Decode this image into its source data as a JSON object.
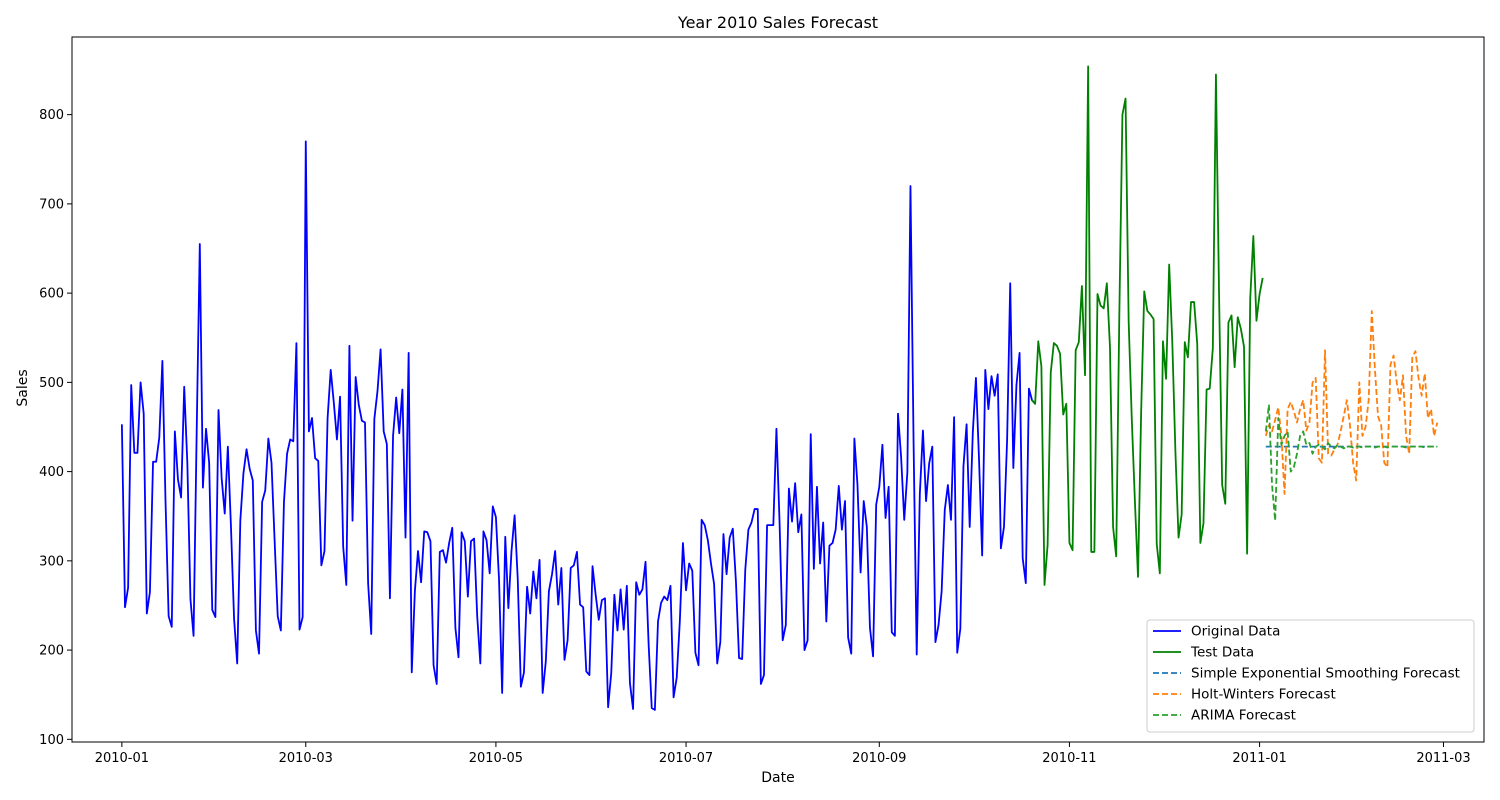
{
  "chart_data": {
    "type": "line",
    "title": "Year 2010 Sales Forecast",
    "xlabel": "Date",
    "ylabel": "Sales",
    "xlim": [
      "2009-12-16",
      "2011-03-14"
    ],
    "ylim": [
      97,
      887
    ],
    "x_ticks": [
      "2010-01",
      "2010-03",
      "2010-05",
      "2010-07",
      "2010-09",
      "2010-11",
      "2011-01",
      "2011-03"
    ],
    "y_ticks": [
      100,
      200,
      300,
      400,
      500,
      600,
      700,
      800
    ],
    "grid": false,
    "legend_position": "bottom-right",
    "series": [
      {
        "name": "Original Data",
        "color": "#0000ff",
        "style": "solid",
        "start": "2010-01-01",
        "step_days": 1,
        "values": [
          453,
          248,
          270,
          497,
          421,
          421,
          500,
          465,
          241,
          265,
          411,
          411,
          438,
          524,
          367,
          238,
          226,
          445,
          391,
          371,
          495,
          410,
          257,
          216,
          445,
          655,
          382,
          448,
          410,
          245,
          237,
          469,
          393,
          353,
          428,
          338,
          235,
          185,
          345,
          398,
          425,
          403,
          390,
          222,
          196,
          366,
          379,
          437,
          410,
          323,
          238,
          222,
          366,
          420,
          436,
          434,
          544,
          223,
          237,
          770,
          445,
          460,
          415,
          412,
          295,
          311,
          460,
          514,
          477,
          436,
          484,
          316,
          273,
          541,
          345,
          506,
          475,
          457,
          455,
          275,
          218,
          459,
          490,
          537,
          445,
          431,
          258,
          440,
          483,
          443,
          492,
          326,
          533,
          175,
          266,
          311,
          276,
          333,
          332,
          322,
          183,
          162,
          310,
          312,
          298,
          320,
          337,
          225,
          192,
          332,
          322,
          260,
          322,
          325,
          238,
          185,
          333,
          323,
          286,
          361,
          349,
          279,
          152,
          327,
          247,
          311,
          351,
          280,
          159,
          175,
          271,
          241,
          288,
          258,
          301,
          152,
          187,
          266,
          285,
          311,
          251,
          292,
          189,
          211,
          292,
          295,
          310,
          251,
          248,
          176,
          172,
          294,
          262,
          234,
          256,
          258,
          136,
          174,
          262,
          222,
          268,
          223,
          272,
          163,
          134,
          276,
          262,
          268,
          299,
          206,
          135,
          133,
          232,
          253,
          260,
          256,
          272,
          147,
          169,
          232,
          320,
          267,
          297,
          289,
          197,
          183,
          346,
          340,
          323,
          297,
          274,
          185,
          209,
          330,
          285,
          326,
          336,
          277,
          191,
          190,
          290,
          335,
          343,
          358,
          358,
          162,
          172,
          340,
          340,
          340,
          448,
          343,
          211,
          228,
          381,
          344,
          387,
          332,
          352,
          200,
          211,
          442,
          291,
          383,
          297,
          343,
          232,
          317,
          320,
          335,
          384,
          335,
          367,
          214,
          196,
          437,
          385,
          287,
          367,
          338,
          225,
          193,
          363,
          383,
          430,
          348,
          383,
          220,
          216,
          465,
          416,
          346,
          399,
          720,
          431,
          195,
          375,
          446,
          367,
          409,
          428,
          209,
          228,
          266,
          357,
          385,
          346,
          461,
          197,
          224,
          406,
          453,
          338,
          444,
          505,
          413,
          306,
          514,
          470,
          507,
          485,
          509,
          314,
          338,
          435,
          611,
          404,
          497,
          533,
          303,
          275,
          493,
          480,
          476
        ]
      },
      {
        "name": "Test Data",
        "color": "#008000",
        "style": "solid",
        "start": "2010-10-20",
        "step_days": 1,
        "values": [
          480,
          476,
          546,
          518,
          273,
          318,
          511,
          544,
          541,
          532,
          464,
          476,
          320,
          312,
          536,
          545,
          608,
          508,
          854,
          310,
          310,
          599,
          586,
          583,
          611,
          540,
          338,
          305,
          575,
          800,
          818,
          568,
          459,
          367,
          282,
          466,
          602,
          580,
          576,
          571,
          319,
          286,
          546,
          504,
          632,
          545,
          422,
          326,
          352,
          545,
          528,
          590,
          590,
          543,
          320,
          342,
          492,
          493,
          538,
          845,
          598,
          385,
          364,
          567,
          575,
          517,
          573,
          560,
          540,
          308,
          594,
          664,
          569,
          599,
          617
        ]
      },
      {
        "name": "Simple Exponential Smoothing Forecast",
        "color": "#1f77b4",
        "style": "dashed",
        "start": "2011-01-03",
        "step_days": 1,
        "values": [
          428,
          428,
          428,
          428,
          428,
          428,
          428,
          428,
          428,
          428,
          428,
          428,
          428,
          428,
          428,
          428,
          428,
          428,
          428,
          428,
          428,
          428,
          428,
          428,
          428,
          428,
          428,
          428,
          428,
          428,
          428,
          428,
          428,
          428,
          428,
          428,
          428,
          428,
          428,
          428,
          428,
          428,
          428,
          428,
          428,
          428,
          428,
          428,
          428,
          428,
          428,
          428,
          428,
          428,
          428,
          428
        ]
      },
      {
        "name": "Holt-Winters Forecast",
        "color": "#ff7f0e",
        "style": "dashed",
        "start": "2011-01-03",
        "step_days": 1,
        "values": [
          440,
          452,
          445,
          458,
          472,
          440,
          375,
          470,
          478,
          468,
          455,
          470,
          480,
          446,
          455,
          500,
          505,
          415,
          410,
          536,
          420,
          418,
          425,
          430,
          445,
          462,
          480,
          452,
          410,
          390,
          500,
          440,
          450,
          480,
          580,
          515,
          462,
          452,
          410,
          405,
          520,
          530,
          500,
          480,
          508,
          440,
          420,
          528,
          535,
          505,
          485,
          510,
          460,
          470,
          440,
          455
        ]
      },
      {
        "name": "ARIMA Forecast",
        "color": "#2ca02c",
        "style": "dashed",
        "start": "2011-01-03",
        "step_days": 1,
        "values": [
          445,
          475,
          385,
          345,
          460,
          430,
          440,
          445,
          400,
          405,
          420,
          440,
          445,
          430,
          432,
          420,
          428,
          430,
          428,
          425,
          432,
          428,
          426,
          430,
          428,
          426,
          428,
          428,
          427,
          428,
          428,
          427,
          428,
          428,
          428,
          427,
          428,
          428,
          428,
          427,
          428,
          428,
          428,
          428,
          428,
          427,
          428,
          428,
          428,
          428,
          428,
          427,
          428,
          428,
          428,
          428
        ]
      }
    ]
  }
}
